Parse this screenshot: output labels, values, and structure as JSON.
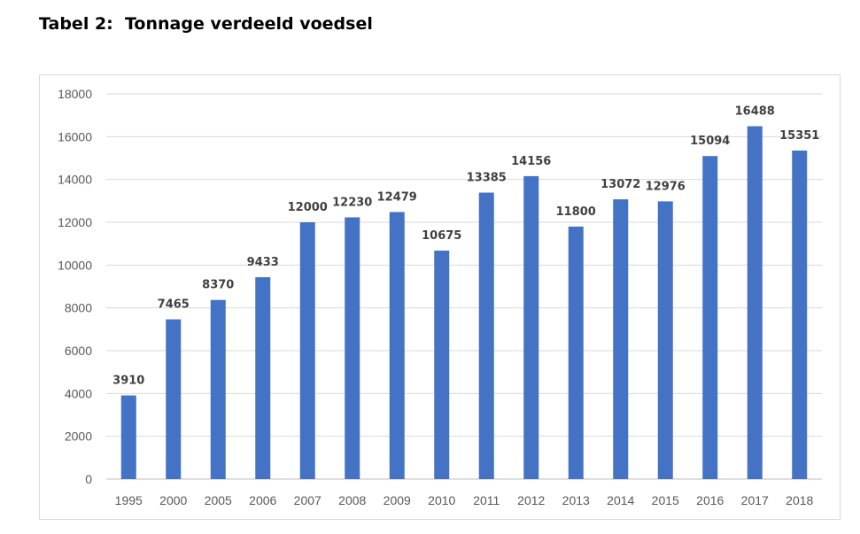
{
  "page": {
    "heading_label": "Tabel 2:",
    "heading_title": "Tonnage verdeeld voedsel"
  },
  "chart_data": {
    "type": "bar",
    "categories": [
      "1995",
      "2000",
      "2005",
      "2006",
      "2007",
      "2008",
      "2009",
      "2010",
      "2011",
      "2012",
      "2013",
      "2014",
      "2015",
      "2016",
      "2017",
      "2018"
    ],
    "values": [
      3910,
      7465,
      8370,
      9433,
      12000,
      12230,
      12479,
      10675,
      13385,
      14156,
      11800,
      13072,
      12976,
      15094,
      16488,
      15351
    ],
    "ylim": [
      0,
      18000
    ],
    "yticks": [
      0,
      2000,
      4000,
      6000,
      8000,
      10000,
      12000,
      14000,
      16000,
      18000
    ],
    "grid": true,
    "legend": "none",
    "data_labels": true,
    "title": "",
    "xlabel": "",
    "ylabel": "",
    "colors": {
      "bar": "#4472C4",
      "grid": "#d9d9d9",
      "axis": "#bfbfbf"
    }
  }
}
